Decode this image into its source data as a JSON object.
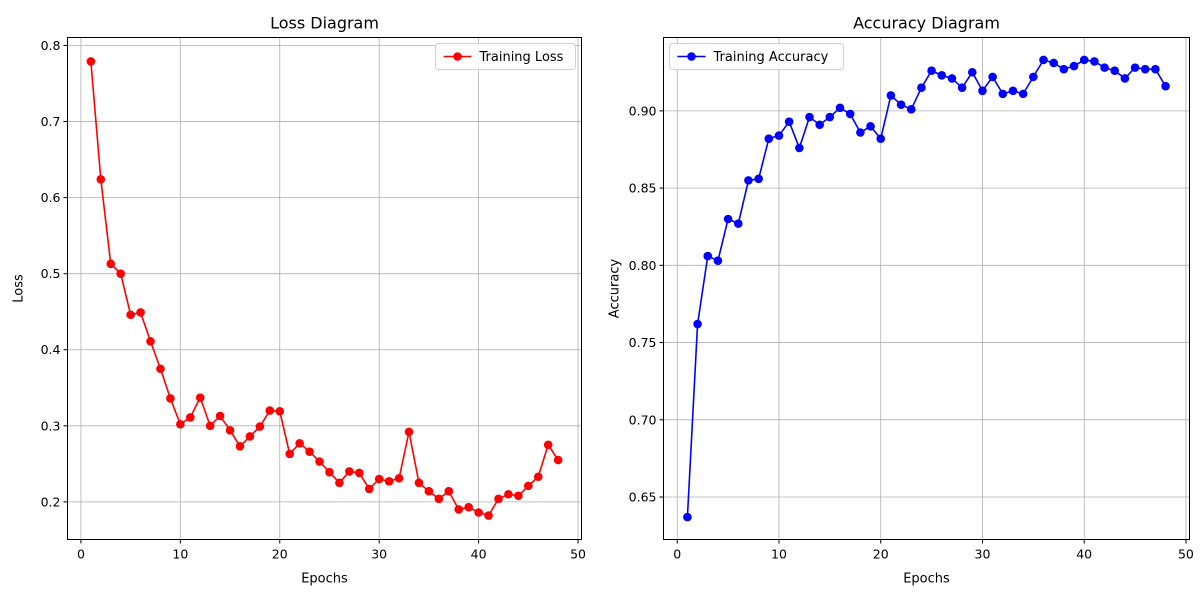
{
  "chart_data": [
    {
      "type": "line",
      "title": "Loss Diagram",
      "xlabel": "Epochs",
      "ylabel": "Loss",
      "xlim": [
        -1.35,
        50.35
      ],
      "ylim": [
        0.1505,
        0.8105
      ],
      "xticks": [
        0,
        10,
        20,
        30,
        40,
        50
      ],
      "yticks": [
        0.2,
        0.3,
        0.4,
        0.5,
        0.6,
        0.7,
        0.8
      ],
      "grid": true,
      "legend_position": "top-right",
      "series": [
        {
          "name": "Training Loss",
          "color": "#ff0000",
          "x": [
            1,
            2,
            3,
            4,
            5,
            6,
            7,
            8,
            9,
            10,
            11,
            12,
            13,
            14,
            15,
            16,
            17,
            18,
            19,
            20,
            21,
            22,
            23,
            24,
            25,
            26,
            27,
            28,
            29,
            30,
            31,
            32,
            33,
            34,
            35,
            36,
            37,
            38,
            39,
            40,
            41,
            42,
            43,
            44,
            45,
            46,
            47,
            48
          ],
          "values": [
            0.779,
            0.624,
            0.513,
            0.5,
            0.446,
            0.449,
            0.411,
            0.375,
            0.336,
            0.302,
            0.311,
            0.337,
            0.3,
            0.313,
            0.294,
            0.273,
            0.286,
            0.299,
            0.32,
            0.319,
            0.263,
            0.277,
            0.266,
            0.253,
            0.239,
            0.225,
            0.24,
            0.238,
            0.217,
            0.23,
            0.227,
            0.231,
            0.292,
            0.225,
            0.214,
            0.204,
            0.214,
            0.19,
            0.193,
            0.186,
            0.182,
            0.204,
            0.21,
            0.208,
            0.221,
            0.233,
            0.275,
            0.255
          ]
        }
      ]
    },
    {
      "type": "line",
      "title": "Accuracy Diagram",
      "xlabel": "Epochs",
      "ylabel": "Accuracy",
      "xlim": [
        -1.35,
        50.35
      ],
      "ylim": [
        0.6225,
        0.9475
      ],
      "xticks": [
        0,
        10,
        20,
        30,
        40,
        50
      ],
      "yticks": [
        0.65,
        0.7,
        0.75,
        0.8,
        0.85,
        0.9
      ],
      "grid": true,
      "legend_position": "top-left",
      "series": [
        {
          "name": "Training Accuracy",
          "color": "#0000ff",
          "x": [
            1,
            2,
            3,
            4,
            5,
            6,
            7,
            8,
            9,
            10,
            11,
            12,
            13,
            14,
            15,
            16,
            17,
            18,
            19,
            20,
            21,
            22,
            23,
            24,
            25,
            26,
            27,
            28,
            29,
            30,
            31,
            32,
            33,
            34,
            35,
            36,
            37,
            38,
            39,
            40,
            41,
            42,
            43,
            44,
            45,
            46,
            47,
            48
          ],
          "values": [
            0.637,
            0.762,
            0.806,
            0.803,
            0.83,
            0.827,
            0.855,
            0.856,
            0.882,
            0.884,
            0.893,
            0.876,
            0.896,
            0.891,
            0.896,
            0.902,
            0.898,
            0.886,
            0.89,
            0.882,
            0.91,
            0.904,
            0.901,
            0.915,
            0.926,
            0.923,
            0.921,
            0.915,
            0.925,
            0.913,
            0.922,
            0.911,
            0.913,
            0.911,
            0.922,
            0.933,
            0.931,
            0.927,
            0.929,
            0.933,
            0.932,
            0.928,
            0.926,
            0.921,
            0.928,
            0.927,
            0.927,
            0.916
          ]
        }
      ]
    }
  ]
}
